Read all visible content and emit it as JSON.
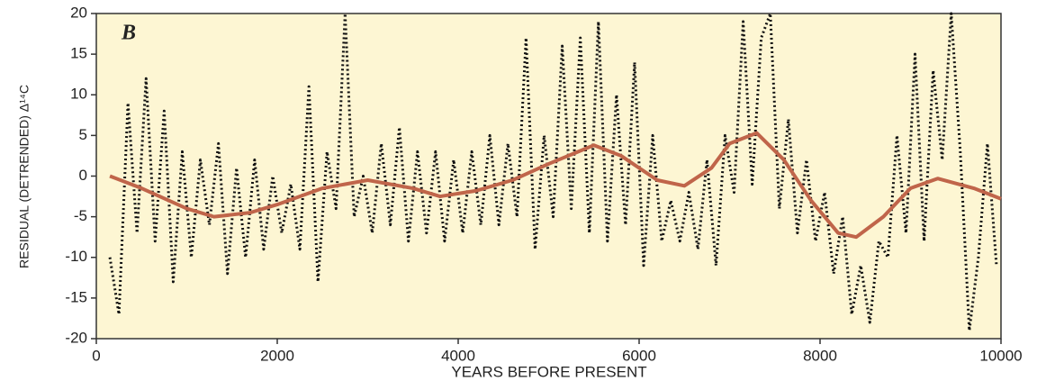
{
  "chart_data": {
    "type": "line",
    "panel_label": "B",
    "xlabel": "YEARS BEFORE PRESENT",
    "ylabel": "RESIDUAL (DETRENDED) Δ¹⁴C",
    "xlim": [
      0,
      10000
    ],
    "xticks": [
      0,
      2000,
      4000,
      6000,
      8000,
      10000
    ],
    "ylim": [
      -20,
      20
    ],
    "yticks": [
      -20,
      -15,
      -10,
      -5,
      0,
      5,
      10,
      15,
      20
    ],
    "background": "#fdf6d3",
    "series": [
      {
        "color": "#111111",
        "style": "dotted",
        "x": [
          150,
          250,
          350,
          450,
          550,
          650,
          750,
          850,
          950,
          1050,
          1150,
          1250,
          1350,
          1450,
          1550,
          1650,
          1750,
          1850,
          1950,
          2050,
          2150,
          2250,
          2350,
          2450,
          2550,
          2650,
          2750,
          2850,
          2950,
          3050,
          3150,
          3250,
          3350,
          3450,
          3550,
          3650,
          3750,
          3850,
          3950,
          4050,
          4150,
          4250,
          4350,
          4450,
          4550,
          4650,
          4750,
          4850,
          4950,
          5050,
          5150,
          5250,
          5350,
          5450,
          5550,
          5650,
          5750,
          5850,
          5950,
          6050,
          6150,
          6250,
          6350,
          6450,
          6550,
          6650,
          6750,
          6850,
          6950,
          7050,
          7150,
          7250,
          7350,
          7450,
          7550,
          7650,
          7750,
          7850,
          7950,
          8050,
          8150,
          8250,
          8350,
          8450,
          8550,
          8650,
          8750,
          8850,
          8950,
          9050,
          9150,
          9250,
          9350,
          9450,
          9550,
          9650,
          9750,
          9850,
          9950
        ],
        "values": [
          -10,
          -17,
          9,
          -7,
          12,
          -8,
          8,
          -13,
          3,
          -10,
          2,
          -6,
          4,
          -12,
          1,
          -10,
          2,
          -9,
          0,
          -7,
          -1,
          -9,
          11,
          -13,
          3,
          -4,
          20,
          -5,
          0,
          -7,
          4,
          -6,
          6,
          -8,
          3,
          -7,
          3,
          -8,
          2,
          -7,
          3,
          -6,
          5,
          -6,
          4,
          -5,
          17,
          -9,
          5,
          -5,
          16,
          -4,
          17,
          -7,
          19,
          -8,
          10,
          -6,
          14,
          -11,
          5,
          -8,
          -3,
          -8,
          -2,
          -9,
          2,
          -11,
          5,
          -2,
          19,
          -1,
          17,
          20,
          -4,
          7,
          -7,
          2,
          -8,
          -2,
          -12,
          -5,
          -17,
          -11,
          -18,
          -8,
          -10,
          5,
          -7,
          15,
          -8,
          13,
          2,
          20,
          3,
          -19,
          -10,
          4,
          -11
        ]
      },
      {
        "color": "#c0654a",
        "style": "solid",
        "x": [
          150,
          500,
          1000,
          1300,
          1700,
          2000,
          2500,
          3000,
          3500,
          3800,
          4200,
          4600,
          5000,
          5500,
          5800,
          6200,
          6500,
          6800,
          7000,
          7300,
          7600,
          7900,
          8200,
          8400,
          8700,
          9000,
          9300,
          9700,
          10000
        ],
        "values": [
          0,
          -1.5,
          -4,
          -5,
          -4.5,
          -3.5,
          -1.5,
          -0.5,
          -1.5,
          -2.5,
          -1.8,
          -0.5,
          1.5,
          3.8,
          2.5,
          -0.5,
          -1.2,
          1,
          4,
          5.3,
          2,
          -3,
          -7,
          -7.5,
          -5,
          -1.5,
          -0.3,
          -1.5,
          -2.8
        ]
      }
    ]
  }
}
